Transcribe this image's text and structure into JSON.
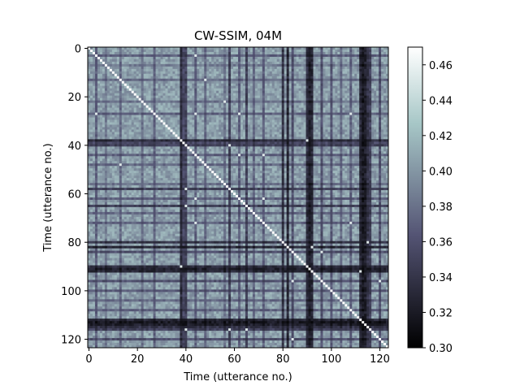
{
  "chart_data": {
    "type": "heatmap",
    "title": "CW-SSIM, 04M",
    "xlabel": "Time (utterance no.)",
    "ylabel": "Time (utterance no.)",
    "n": 124,
    "xlim": [
      0,
      123
    ],
    "ylim": [
      123,
      0
    ],
    "x_ticks": [
      0,
      20,
      40,
      60,
      80,
      100,
      120
    ],
    "y_ticks": [
      0,
      20,
      40,
      60,
      80,
      100,
      120
    ],
    "colormap": "bone",
    "colorbar": {
      "range": [
        0.3,
        0.47
      ],
      "ticks": [
        "0.30",
        "0.32",
        "0.34",
        "0.36",
        "0.38",
        "0.40",
        "0.42",
        "0.44",
        "0.46"
      ]
    },
    "diagonal_value": 0.47,
    "background_value": 0.405,
    "dark_bands": [
      {
        "index": 3,
        "value": 0.37
      },
      {
        "index": 7,
        "value": 0.385
      },
      {
        "index": 13,
        "value": 0.375
      },
      {
        "index": 22,
        "value": 0.38
      },
      {
        "index": 27,
        "value": 0.37
      },
      {
        "index": 38,
        "value": 0.335
      },
      {
        "index": 39,
        "value": 0.355
      },
      {
        "index": 40,
        "value": 0.35
      },
      {
        "index": 44,
        "value": 0.37
      },
      {
        "index": 48,
        "value": 0.375
      },
      {
        "index": 56,
        "value": 0.38
      },
      {
        "index": 58,
        "value": 0.35
      },
      {
        "index": 62,
        "value": 0.37
      },
      {
        "index": 65,
        "value": 0.35
      },
      {
        "index": 68,
        "value": 0.375
      },
      {
        "index": 72,
        "value": 0.37
      },
      {
        "index": 80,
        "value": 0.34
      },
      {
        "index": 82,
        "value": 0.33
      },
      {
        "index": 84,
        "value": 0.36
      },
      {
        "index": 90,
        "value": 0.335
      },
      {
        "index": 91,
        "value": 0.325
      },
      {
        "index": 92,
        "value": 0.33
      },
      {
        "index": 96,
        "value": 0.36
      },
      {
        "index": 100,
        "value": 0.365
      },
      {
        "index": 104,
        "value": 0.375
      },
      {
        "index": 108,
        "value": 0.37
      },
      {
        "index": 112,
        "value": 0.33
      },
      {
        "index": 113,
        "value": 0.32
      },
      {
        "index": 114,
        "value": 0.325
      },
      {
        "index": 115,
        "value": 0.34
      },
      {
        "index": 116,
        "value": 0.35
      },
      {
        "index": 120,
        "value": 0.36
      }
    ]
  }
}
